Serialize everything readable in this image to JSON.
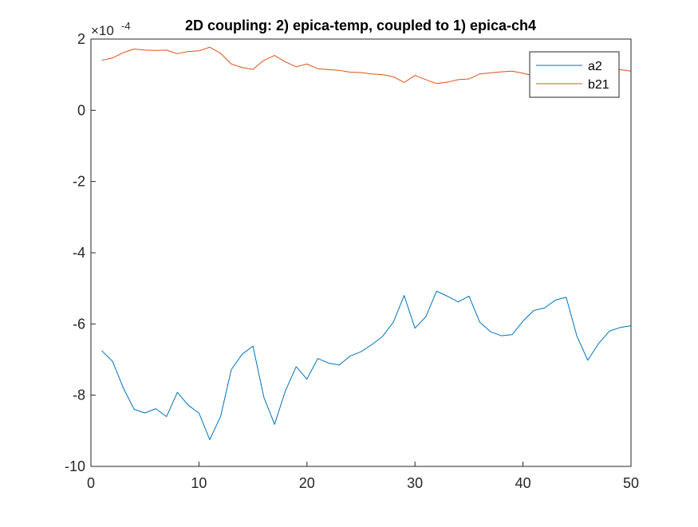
{
  "chart_data": {
    "type": "line",
    "title": "2D coupling: 2) epica-temp, coupled to 1) epica-ch4",
    "xlabel": "",
    "ylabel": "",
    "y_exponent_base": "×10",
    "y_exponent_power": "-4",
    "xlim": [
      0,
      50
    ],
    "ylim": [
      -10,
      2
    ],
    "xticks": [
      0,
      10,
      20,
      30,
      40,
      50
    ],
    "yticks": [
      -10,
      -8,
      -6,
      -4,
      -2,
      0,
      2
    ],
    "grid": false,
    "legend_position": "top-right",
    "x": [
      1,
      2,
      3,
      4,
      5,
      6,
      7,
      8,
      9,
      10,
      11,
      12,
      13,
      14,
      15,
      16,
      17,
      18,
      19,
      20,
      21,
      22,
      23,
      24,
      25,
      26,
      27,
      28,
      29,
      30,
      31,
      32,
      33,
      34,
      35,
      36,
      37,
      38,
      39,
      40,
      41,
      42,
      43,
      44,
      45,
      46,
      47,
      48,
      49,
      50
    ],
    "series": [
      {
        "name": "a2",
        "color": "#0072BD",
        "values": [
          -6.75,
          -7.05,
          -7.8,
          -8.4,
          -8.5,
          -8.38,
          -8.6,
          -7.92,
          -8.28,
          -8.5,
          -9.25,
          -8.6,
          -7.28,
          -6.85,
          -6.62,
          -8.05,
          -8.82,
          -7.88,
          -7.2,
          -7.55,
          -6.97,
          -7.1,
          -7.15,
          -6.9,
          -6.78,
          -6.58,
          -6.35,
          -5.95,
          -5.2,
          -6.12,
          -5.8,
          -5.08,
          -5.22,
          -5.38,
          -5.22,
          -5.95,
          -6.22,
          -6.33,
          -6.3,
          -5.92,
          -5.62,
          -5.55,
          -5.33,
          -5.25,
          -6.35,
          -7.02,
          -6.55,
          -6.2,
          -6.1,
          -6.05
        ]
      },
      {
        "name": "b21",
        "color": "#D95319",
        "values": [
          1.4,
          1.47,
          1.62,
          1.72,
          1.69,
          1.68,
          1.69,
          1.59,
          1.65,
          1.67,
          1.77,
          1.6,
          1.3,
          1.2,
          1.15,
          1.4,
          1.54,
          1.36,
          1.22,
          1.3,
          1.17,
          1.14,
          1.12,
          1.07,
          1.06,
          1.02,
          1.0,
          0.94,
          0.78,
          0.98,
          0.86,
          0.75,
          0.79,
          0.86,
          0.88,
          1.02,
          1.05,
          1.08,
          1.1,
          1.04,
          0.97,
          0.98,
          1.08,
          1.09,
          1.07,
          1.06,
          1.2,
          1.18,
          1.14,
          1.1
        ]
      }
    ]
  }
}
